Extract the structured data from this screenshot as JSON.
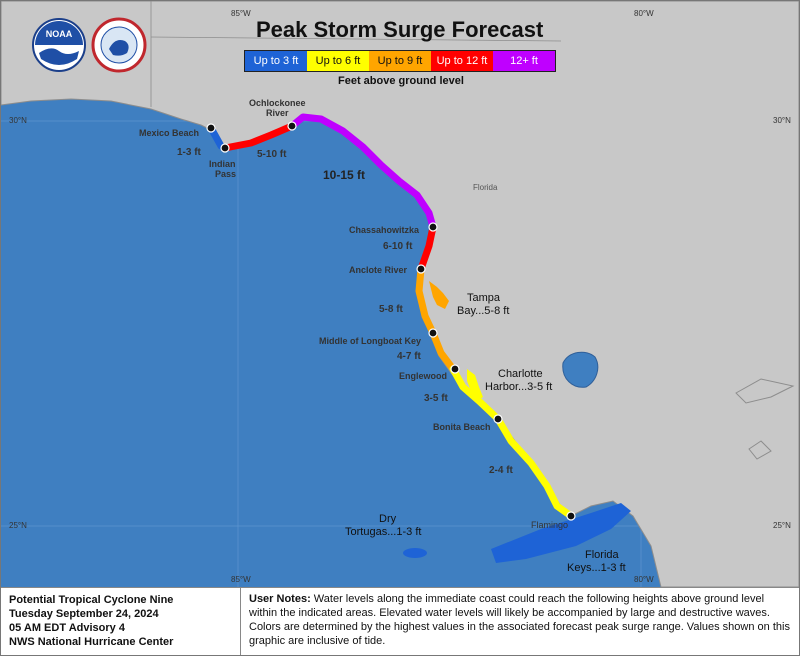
{
  "title": "Peak Storm Surge Forecast",
  "legend": {
    "items": [
      {
        "label": "Up to 3 ft",
        "color": "#1e63d6"
      },
      {
        "label": "Up to 6 ft",
        "color": "#ffff00"
      },
      {
        "label": "Up to 9 ft",
        "color": "#ffa500"
      },
      {
        "label": "Up to 12 ft",
        "color": "#ff0000"
      },
      {
        "label": "12+ ft",
        "color": "#bf00ff"
      }
    ],
    "subtitle": "Feet above ground level"
  },
  "logos": {
    "noaa": "NOAA",
    "nws": "NATIONAL WEATHER SERVICE"
  },
  "coords": {
    "lon85_top": "85°W",
    "lon80_top": "80°W",
    "lon85_bot": "85°W",
    "lon80_bot": "80°W",
    "lat30_left": "30°N",
    "lat30_right": "30°N",
    "lat25_left": "25°N",
    "lat25_right": "25°N"
  },
  "places": {
    "mexico_beach": "Mexico Beach",
    "indian_pass_1": "Indian",
    "indian_pass_2": "Pass",
    "ochlockonee_1": "Ochlockonee",
    "ochlockonee_2": "River",
    "florida": "Florida",
    "chassahowitzka": "Chassahowitzka",
    "anclote": "Anclote River",
    "longboat": "Middle of Longboat Key",
    "englewood": "Englewood",
    "bonita": "Bonita Beach",
    "flamingo": "Flamingo"
  },
  "surge_labels": {
    "s1": "1-3 ft",
    "s2": "5-10 ft",
    "s3": "10-15 ft",
    "s4": "6-10 ft",
    "s5": "5-8 ft",
    "tampa_1": "Tampa",
    "tampa_2": "Bay...5-8 ft",
    "s6": "4-7 ft",
    "charlotte_1": "Charlotte",
    "charlotte_2": "Harbor...3-5 ft",
    "s7": "3-5 ft",
    "s8": "2-4 ft",
    "dry_1": "Dry",
    "dry_2": "Tortugas...1-3 ft",
    "keys_1": "Florida",
    "keys_2": "Keys...1-3 ft"
  },
  "footer": {
    "advisory": [
      "Potential Tropical Cyclone Nine",
      "Tuesday September 24, 2024",
      "05 AM EDT Advisory 4",
      "NWS National Hurricane Center"
    ],
    "notes_label": "User Notes:",
    "notes_text": " Water levels along the immediate coast could reach the following heights above ground level within the indicated areas. Elevated water levels will likely be accompanied by large and destructive waves. Colors are determined by the highest values in the associated forecast peak surge range. Values shown on this graphic are inclusive of tide."
  }
}
